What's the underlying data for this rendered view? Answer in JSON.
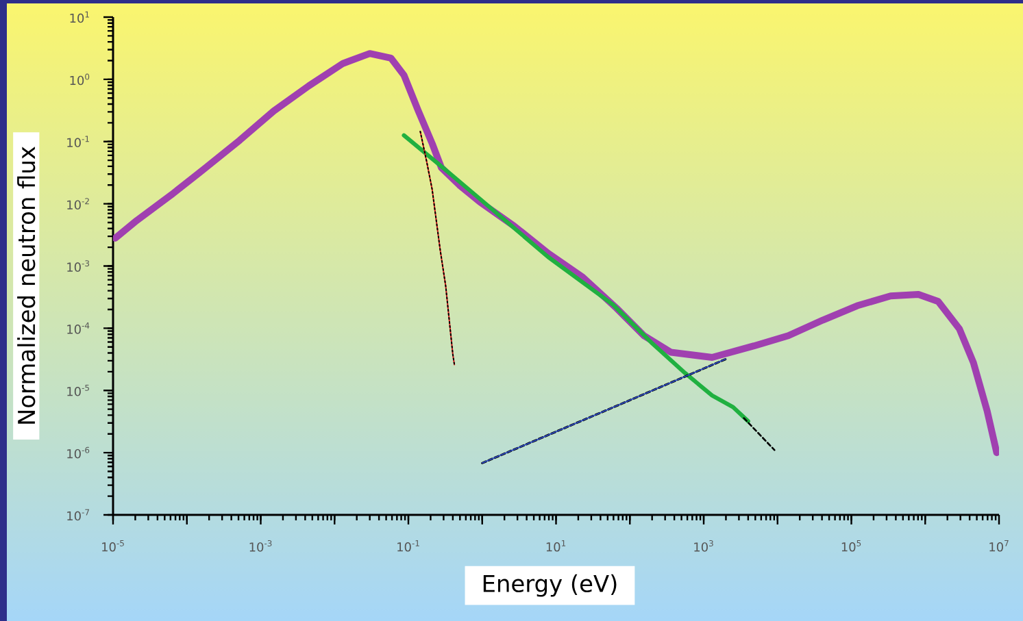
{
  "chart_data": {
    "type": "line",
    "xlabel": "Energy (eV)",
    "ylabel": "Normalized neutron flux",
    "log": "xy",
    "xlim": [
      1e-05,
      10000000.0
    ],
    "ylim": [
      1e-07,
      10
    ],
    "xticks": [
      {
        "value": 1e-05,
        "label": "10$^{-5}$"
      },
      {
        "value": 0.0001,
        "label": null
      },
      {
        "value": 0.001,
        "label": "10$^{-3}$"
      },
      {
        "value": 0.01,
        "label": null
      },
      {
        "value": 0.1,
        "label": "10$^{-1}$"
      },
      {
        "value": 1,
        "label": null
      },
      {
        "value": 10,
        "label": "10$^{1}$"
      },
      {
        "value": 100,
        "label": null
      },
      {
        "value": 1000,
        "label": "10$^{3}$"
      },
      {
        "value": 10000.0,
        "label": null
      },
      {
        "value": 100000.0,
        "label": "10$^{5}$"
      },
      {
        "value": 1000000.0,
        "label": null
      },
      {
        "value": 10000000.0,
        "label": "10$^{7}$"
      }
    ],
    "yticks": [
      {
        "value": 1e-07,
        "label": "10$^{-7}$"
      },
      {
        "value": 1e-06,
        "label": "10$^{-6}$"
      },
      {
        "value": 1e-05,
        "label": "10$^{-5}$"
      },
      {
        "value": 0.0001,
        "label": "10$^{-4}$"
      },
      {
        "value": 0.001,
        "label": "10$^{-3}$"
      },
      {
        "value": 0.01,
        "label": "10$^{-2}$"
      },
      {
        "value": 0.1,
        "label": "10$^{-1}$"
      },
      {
        "value": 1,
        "label": "10$^{0}$"
      },
      {
        "value": 10,
        "label": "10$^{1}$"
      }
    ],
    "series": [
      {
        "color": "#a040b0",
        "line_style": "solid",
        "x": [
          1.07e-05,
          2.1e-05,
          6.2e-05,
          0.00018,
          0.00052,
          0.0015,
          0.0045,
          0.013,
          0.03,
          0.058,
          0.087,
          0.135,
          0.21,
          0.28,
          0.49,
          0.93,
          2.7,
          7.8,
          23,
          66,
          155,
          360,
          1300,
          4800,
          14000.0,
          41000.0,
          120000.0,
          340000.0,
          810000.0,
          1500000.0,
          2900000.0,
          4500000.0,
          6900000.0,
          9300000.0
        ],
        "values": [
          0.0028,
          0.0054,
          0.014,
          0.038,
          0.105,
          0.31,
          0.79,
          1.8,
          2.6,
          2.2,
          1.17,
          0.32,
          0.093,
          0.038,
          0.02,
          0.0107,
          0.0044,
          0.0016,
          0.00066,
          0.00021,
          7.6e-05,
          4.1e-05,
          3.4e-05,
          5.2e-05,
          7.6e-05,
          0.000135,
          0.00023,
          0.00033,
          0.00035,
          0.00027,
          9.8e-05,
          2.8e-05,
          4.7e-06,
          1e-06
        ]
      },
      {
        "color": "#20b040",
        "line_style": "solid",
        "x": [
          0.087,
          0.26,
          0.93,
          7.8,
          59,
          195,
          560,
          1300,
          2500,
          4000
        ],
        "values": [
          0.126,
          0.043,
          0.012,
          0.0014,
          0.00024,
          5.9e-05,
          1.9e-05,
          8.3e-06,
          5.4e-06,
          3.2e-06
        ]
      },
      {
        "color": "#e02020",
        "line_style": "solid",
        "x": [
          0.145,
          0.178,
          0.21,
          0.27,
          0.32,
          0.4,
          0.42
        ],
        "values": [
          0.145,
          0.046,
          0.017,
          0.0018,
          0.00048,
          3.8e-05,
          2.6e-05
        ]
      },
      {
        "color": "#000000",
        "line_style": "dotted",
        "x": [
          0.145,
          0.178,
          0.21,
          0.27,
          0.32,
          0.4,
          0.42
        ],
        "values": [
          0.145,
          0.046,
          0.017,
          0.0018,
          0.00048,
          3.8e-05,
          2.6e-05
        ]
      },
      {
        "color": "#000000",
        "line_style": "dashed",
        "x": [
          1.0,
          46,
          2000
        ],
        "values": [
          6.8e-07,
          4.7e-06,
          3.2e-05
        ]
      },
      {
        "color": "#3050d0",
        "line_style": "solid",
        "x": [
          1.0,
          46,
          2000
        ],
        "values": [
          6.8e-07,
          4.7e-06,
          3.2e-05
        ]
      },
      {
        "color": "#000000",
        "line_style": "dashed",
        "x": [
          3500,
          9100
        ],
        "values": [
          3.6e-06,
          1.1e-06
        ]
      }
    ]
  }
}
